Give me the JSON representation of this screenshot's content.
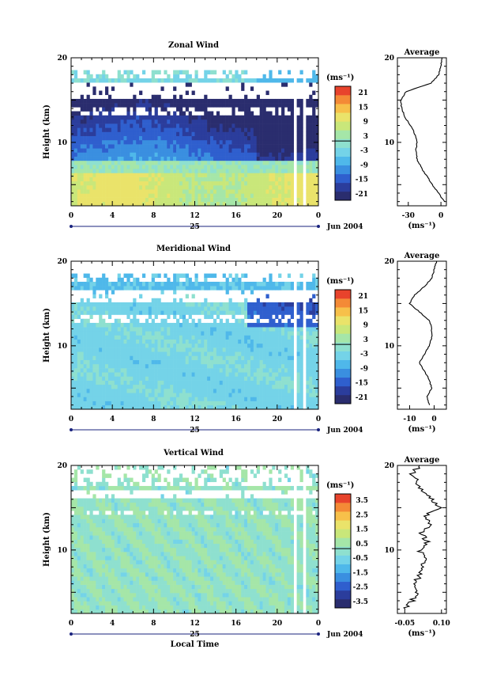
{
  "chart_data": [
    {
      "type": "heatmap",
      "title": "Zonal Wind",
      "ylabel": "Height (km)",
      "yticks": [
        "20",
        "10"
      ],
      "ylim": [
        2.5,
        20
      ],
      "xticks": [
        "0",
        "4",
        "8",
        "12",
        "16",
        "20",
        "0"
      ],
      "xlim": [
        0,
        24
      ],
      "date_day": "25",
      "date_month": "Jun 2004",
      "colorbar": {
        "unit": "(ms⁻¹)",
        "ticks": [
          "21",
          "15",
          "9",
          "3",
          "-3",
          "-9",
          "-15",
          "-21"
        ],
        "range": [
          -24,
          24
        ]
      },
      "average": {
        "title": "Average",
        "xticks": [
          "-30",
          "0"
        ],
        "xlim": [
          -40,
          5
        ],
        "xlabel": "(ms⁻¹)",
        "yticks": [
          "20",
          "10"
        ],
        "heights": [
          3,
          4,
          5,
          6,
          7,
          8,
          9,
          10,
          11,
          12,
          13,
          14,
          15,
          16,
          17,
          18,
          19,
          20
        ],
        "values": [
          3,
          -2,
          -8,
          -13,
          -18,
          -22,
          -23,
          -22,
          -24,
          -28,
          -33,
          -36,
          -37,
          -32,
          -9,
          -2,
          0,
          1
        ]
      },
      "field": {
        "nx": 80,
        "ny": 36,
        "base": "zonal",
        "amp": 3.0,
        "gap_top": [
          15.0,
          17.0
        ],
        "gap_mid": [
          13.0,
          14.0
        ],
        "top_limit": 18.6
      }
    },
    {
      "type": "heatmap",
      "title": "Meridional Wind",
      "ylabel": "Height (km)",
      "yticks": [
        "20",
        "10"
      ],
      "ylim": [
        2.5,
        20
      ],
      "xticks": [
        "0",
        "4",
        "8",
        "12",
        "16",
        "20",
        "0"
      ],
      "xlim": [
        0,
        24
      ],
      "date_day": "25",
      "date_month": "Jun 2004",
      "colorbar": {
        "unit": "(ms⁻¹)",
        "ticks": [
          "21",
          "15",
          "9",
          "3",
          "-3",
          "-9",
          "-15",
          "-21"
        ],
        "range": [
          -24,
          24
        ]
      },
      "average": {
        "title": "Average",
        "xticks": [
          "-10",
          "0"
        ],
        "xlim": [
          -15,
          5
        ],
        "xlabel": "(ms⁻¹)",
        "yticks": [
          "20",
          "10"
        ],
        "heights": [
          3,
          4,
          5,
          6,
          7,
          8,
          9,
          10,
          11,
          12,
          13,
          14,
          15,
          16,
          17,
          18,
          19,
          20
        ],
        "values": [
          -2,
          -3,
          -1,
          -2,
          -4,
          -6,
          -4,
          -2,
          -1,
          -1,
          -2,
          -6,
          -10,
          -8,
          -4,
          -1,
          0,
          1
        ]
      },
      "field": {
        "nx": 80,
        "ny": 36,
        "base": "meridional",
        "amp": 3.0,
        "gap_top": [
          15.0,
          16.8
        ],
        "gap_mid": [
          12.5,
          13.6
        ],
        "top_limit": 18.6
      }
    },
    {
      "type": "heatmap",
      "title": "Vertical Wind",
      "ylabel": "Height (km)",
      "yticks": [
        "20",
        "10"
      ],
      "ylim": [
        2.5,
        20
      ],
      "xticks": [
        "0",
        "4",
        "8",
        "12",
        "16",
        "20",
        "0"
      ],
      "xlim": [
        0,
        24
      ],
      "xlabel": "Local Time",
      "date_day": "25",
      "date_month": "Jun 2004",
      "colorbar": {
        "unit": "(ms⁻¹)",
        "ticks": [
          "3.5",
          "2.5",
          "1.5",
          "0.5",
          "-0.5",
          "-1.5",
          "-2.5",
          "-3.5"
        ],
        "range": [
          -4,
          4
        ]
      },
      "average": {
        "title": "Average",
        "xticks": [
          "-0.05",
          "0.10"
        ],
        "xlim": [
          -0.08,
          0.12
        ],
        "xlabel": "(ms⁻¹)",
        "yticks": [
          "20",
          "10"
        ],
        "heights": [
          3,
          4,
          5,
          6,
          7,
          8,
          9,
          10,
          11,
          12,
          13,
          14,
          15,
          16,
          17,
          18,
          19,
          20
        ],
        "values": [
          -0.05,
          -0.02,
          0.0,
          -0.01,
          0.01,
          0.02,
          0.03,
          0.01,
          0.04,
          0.02,
          0.05,
          0.03,
          0.09,
          0.06,
          0.02,
          0.0,
          -0.02,
          0.01
        ],
        "noisy": true
      },
      "field": {
        "nx": 80,
        "ny": 36,
        "base": "vertical",
        "amp": 0.6,
        "gap_top": [
          16.0,
          17.0
        ],
        "gap_mid": [
          14.0,
          14.6
        ],
        "top_limit": 20
      }
    }
  ]
}
